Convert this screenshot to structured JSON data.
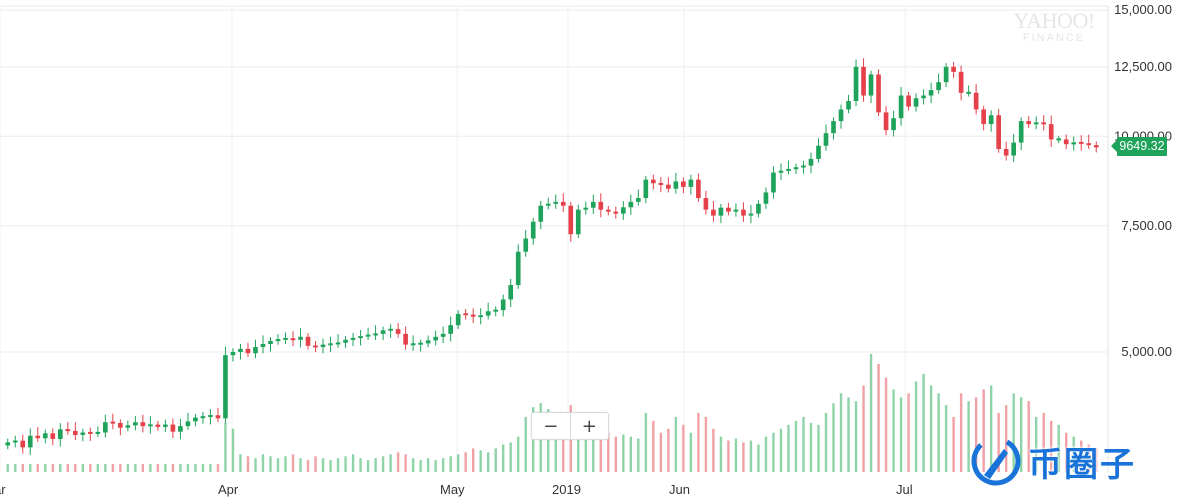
{
  "chart_data": {
    "type": "candlestick",
    "watermark": {
      "line1": "YAHOO!",
      "line2": "FINANCE"
    },
    "y_scale": "log",
    "ylim": [
      3400,
      15200
    ],
    "y_ticks": [
      {
        "value": 15000,
        "label": "15,000.00"
      },
      {
        "value": 12500,
        "label": "12,500.00"
      },
      {
        "value": 10000,
        "label": "10,000.00"
      },
      {
        "value": 7500,
        "label": "7,500.00"
      },
      {
        "value": 5000,
        "label": "5,000.00"
      }
    ],
    "x_ticks": [
      "ar",
      "Apr",
      "May",
      "2019",
      "Jun",
      "Jul"
    ],
    "last_price": "9649.32",
    "up_color": "#1fa35a",
    "down_color": "#e5414b",
    "volume_up_color": "#8fd3a8",
    "volume_down_color": "#f1a0a5",
    "close_values": [
      3740,
      3760,
      3680,
      3820,
      3790,
      3850,
      3780,
      3900,
      3880,
      3830,
      3860,
      3850,
      3860,
      3990,
      3980,
      3920,
      3950,
      3990,
      3940,
      3960,
      3930,
      3960,
      3870,
      3940,
      4000,
      4050,
      4060,
      4080,
      4040,
      4950,
      5000,
      5050,
      4980,
      5080,
      5130,
      5180,
      5210,
      5220,
      5200,
      5250,
      5100,
      5080,
      5120,
      5130,
      5150,
      5200,
      5230,
      5260,
      5280,
      5300,
      5360,
      5380,
      5300,
      5120,
      5130,
      5140,
      5190,
      5250,
      5300,
      5450,
      5650,
      5640,
      5600,
      5620,
      5700,
      5720,
      5920,
      6200,
      6900,
      7200,
      7600,
      8000,
      8050,
      8100,
      8000,
      7300,
      7900,
      7950,
      8100,
      7900,
      7850,
      7800,
      7960,
      8100,
      8200,
      8700,
      8600,
      8560,
      8450,
      8650,
      8500,
      8700,
      8200,
      7900,
      7750,
      7950,
      7850,
      7900,
      7750,
      7800,
      8050,
      8350,
      8900,
      8950,
      9000,
      9050,
      9100,
      9300,
      9700,
      10100,
      10500,
      10900,
      11200,
      12500,
      11400,
      12200,
      10800,
      10200,
      10600,
      11400,
      11000,
      11300,
      11400,
      11600,
      11900,
      12500,
      12300,
      11500,
      11500,
      10900,
      10400,
      10700,
      9600,
      9400,
      9800,
      10500,
      10400,
      10450,
      10400,
      9900,
      9900,
      9750,
      9800,
      9780,
      9720,
      9649.32
    ],
    "volumes": [
      4,
      4,
      4,
      4,
      4,
      4,
      4,
      4,
      4,
      4,
      4,
      4,
      4,
      4,
      4,
      4,
      4,
      4,
      4,
      4,
      4,
      4,
      4,
      4,
      4,
      4,
      4,
      4,
      4,
      25,
      22,
      9,
      8,
      7,
      9,
      8,
      7,
      8,
      9,
      7,
      6,
      8,
      7,
      6,
      7,
      8,
      9,
      7,
      6,
      7,
      8,
      9,
      10,
      9,
      7,
      6,
      7,
      6,
      7,
      8,
      9,
      10,
      12,
      11,
      10,
      12,
      14,
      15,
      18,
      28,
      33,
      35,
      32,
      30,
      28,
      34,
      30,
      28,
      25,
      22,
      20,
      18,
      19,
      18,
      17,
      30,
      26,
      20,
      22,
      28,
      24,
      20,
      30,
      28,
      22,
      18,
      16,
      17,
      15,
      16,
      14,
      18,
      20,
      22,
      24,
      26,
      28,
      25,
      24,
      30,
      35,
      40,
      38,
      36,
      44,
      60,
      55,
      48,
      42,
      38,
      40,
      46,
      50,
      44,
      40,
      34,
      28,
      40,
      36,
      38,
      42,
      44,
      30,
      34,
      40,
      38,
      36,
      28,
      30,
      26,
      24,
      20,
      18,
      16,
      14,
      12
    ],
    "volume_max": 60
  },
  "controls": {
    "zoom_out_label": "−",
    "zoom_in_label": "+"
  },
  "brand": {
    "text": "币圈子"
  }
}
